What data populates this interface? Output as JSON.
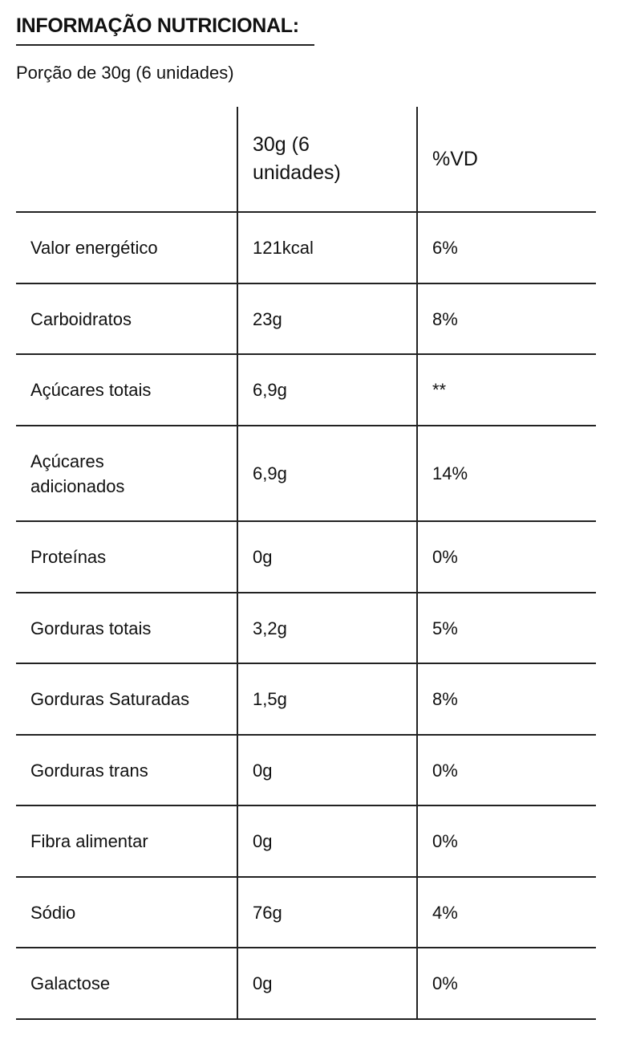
{
  "header": {
    "title": "INFORMAÇÃO NUTRICIONAL:",
    "subtitle": "Porção de 30g (6 unidades)"
  },
  "table": {
    "columns": [
      "30g (6 unidades)",
      "%VD"
    ],
    "rows": [
      [
        "Valor energético",
        "121kcal",
        "6%"
      ],
      [
        "Carboidratos",
        "23g",
        "8%"
      ],
      [
        "Açúcares totais",
        "6,9g",
        "**"
      ],
      [
        "Açúcares adicionados",
        "6,9g",
        "14%"
      ],
      [
        "Proteínas",
        "0g",
        "0%"
      ],
      [
        "Gorduras totais",
        "3,2g",
        "5%"
      ],
      [
        "Gorduras Saturadas",
        "1,5g",
        "8%"
      ],
      [
        "Gorduras trans",
        "0g",
        "0%"
      ],
      [
        "Fibra alimentar",
        "0g",
        "0%"
      ],
      [
        "Sódio",
        "76g",
        "4%"
      ],
      [
        "Galactose",
        "0g",
        "0%"
      ]
    ]
  }
}
